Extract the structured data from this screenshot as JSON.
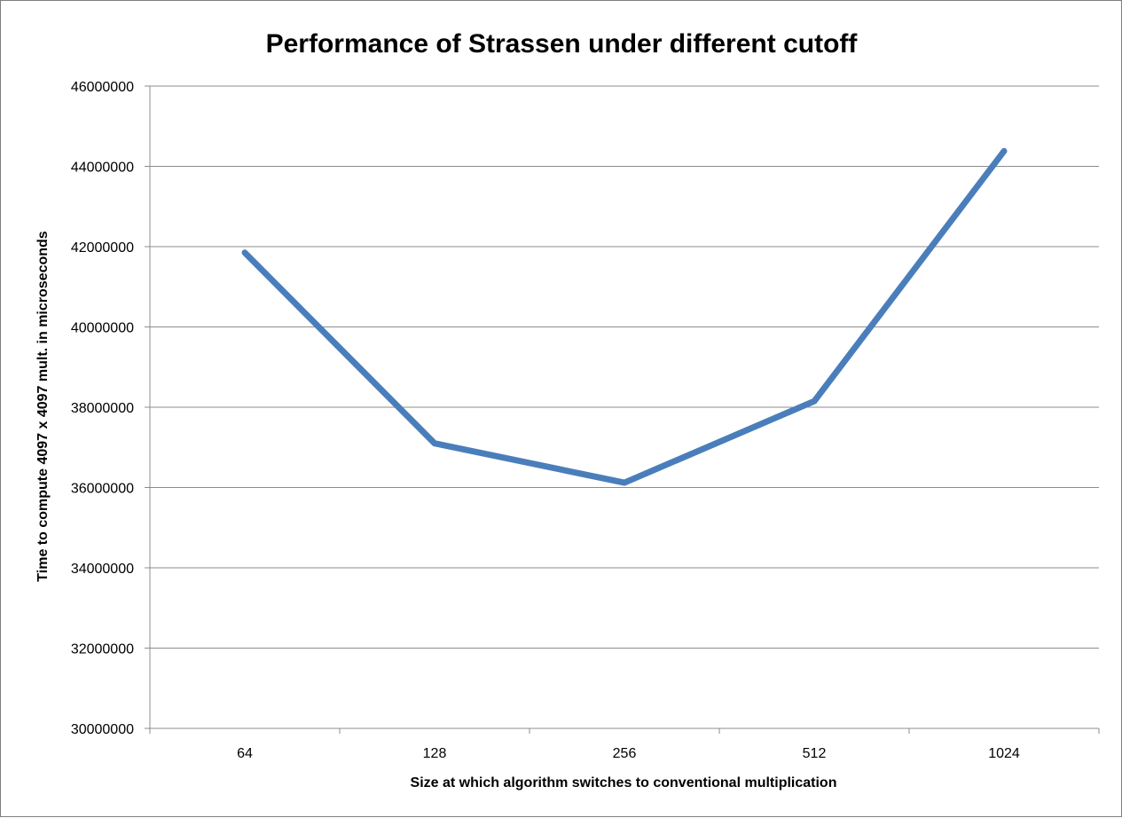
{
  "chart_data": {
    "type": "line",
    "title": "Performance of Strassen under different cutoff",
    "xlabel": "Size at which algorithm switches to conventional multiplication",
    "ylabel": "Time to compute 4097 x 4097 mult. in microseconds",
    "categories": [
      "64",
      "128",
      "256",
      "512",
      "1024"
    ],
    "series": [
      {
        "values": [
          41850000,
          37100000,
          36120000,
          38150000,
          44380000
        ],
        "color": "#4a7ebb"
      }
    ],
    "ylim": [
      30000000,
      46000000
    ],
    "yticks": [
      "30000000",
      "32000000",
      "34000000",
      "36000000",
      "38000000",
      "40000000",
      "42000000",
      "44000000",
      "46000000"
    ],
    "grid": "horizontal",
    "legend": "none"
  }
}
